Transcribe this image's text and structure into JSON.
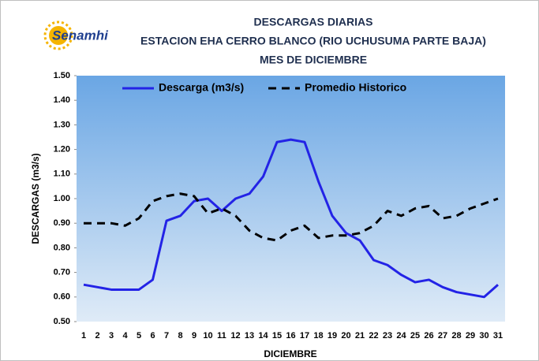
{
  "chart_data": {
    "type": "line",
    "logo_text": "Senamhi",
    "title_lines": [
      "DESCARGAS DIARIAS",
      "ESTACION EHA CERRO BLANCO (RIO UCHUSUMA PARTE BAJA)",
      "MES DE DICIEMBRE"
    ],
    "x_label": "DICIEMBRE",
    "y_label": "DESCARGAS (m3/s)",
    "categories": [
      "1",
      "2",
      "3",
      "4",
      "5",
      "6",
      "7",
      "8",
      "9",
      "10",
      "11",
      "12",
      "13",
      "14",
      "15",
      "16",
      "17",
      "18",
      "19",
      "20",
      "21",
      "22",
      "23",
      "24",
      "25",
      "26",
      "27",
      "28",
      "29",
      "30",
      "31"
    ],
    "series": [
      {
        "name": "Descarga (m3/s)",
        "color": "#2323e6",
        "dash": false,
        "values": [
          0.65,
          0.64,
          0.63,
          0.63,
          0.63,
          0.67,
          0.91,
          0.93,
          0.99,
          1.0,
          0.95,
          1.0,
          1.02,
          1.09,
          1.23,
          1.24,
          1.23,
          1.07,
          0.93,
          0.86,
          0.83,
          0.75,
          0.73,
          0.69,
          0.66,
          0.67,
          0.64,
          0.62,
          0.61,
          0.6,
          0.65
        ]
      },
      {
        "name": "Promedio Historico",
        "color": "#000000",
        "dash": true,
        "values": [
          0.9,
          0.9,
          0.9,
          0.89,
          0.92,
          0.99,
          1.01,
          1.02,
          1.01,
          0.94,
          0.96,
          0.93,
          0.87,
          0.84,
          0.83,
          0.87,
          0.89,
          0.84,
          0.85,
          0.85,
          0.86,
          0.89,
          0.95,
          0.93,
          0.96,
          0.97,
          0.92,
          0.93,
          0.96,
          0.98,
          1.0
        ]
      }
    ],
    "ylim": [
      0.5,
      1.5
    ],
    "yticks": [
      {
        "value": 0.5,
        "label": "0.50"
      },
      {
        "value": 0.6,
        "label": "0.60"
      },
      {
        "value": 0.7,
        "label": "0.70"
      },
      {
        "value": 0.8,
        "label": "0.80"
      },
      {
        "value": 0.9,
        "label": "0.90"
      },
      {
        "value": 1.0,
        "label": "1.00"
      },
      {
        "value": 1.1,
        "label": "1.10"
      },
      {
        "value": 1.2,
        "label": "1.20"
      },
      {
        "value": 1.3,
        "label": "1.30"
      },
      {
        "value": 1.4,
        "label": "1.40"
      },
      {
        "value": 1.5,
        "label": "1.50"
      }
    ],
    "legend": "top"
  }
}
